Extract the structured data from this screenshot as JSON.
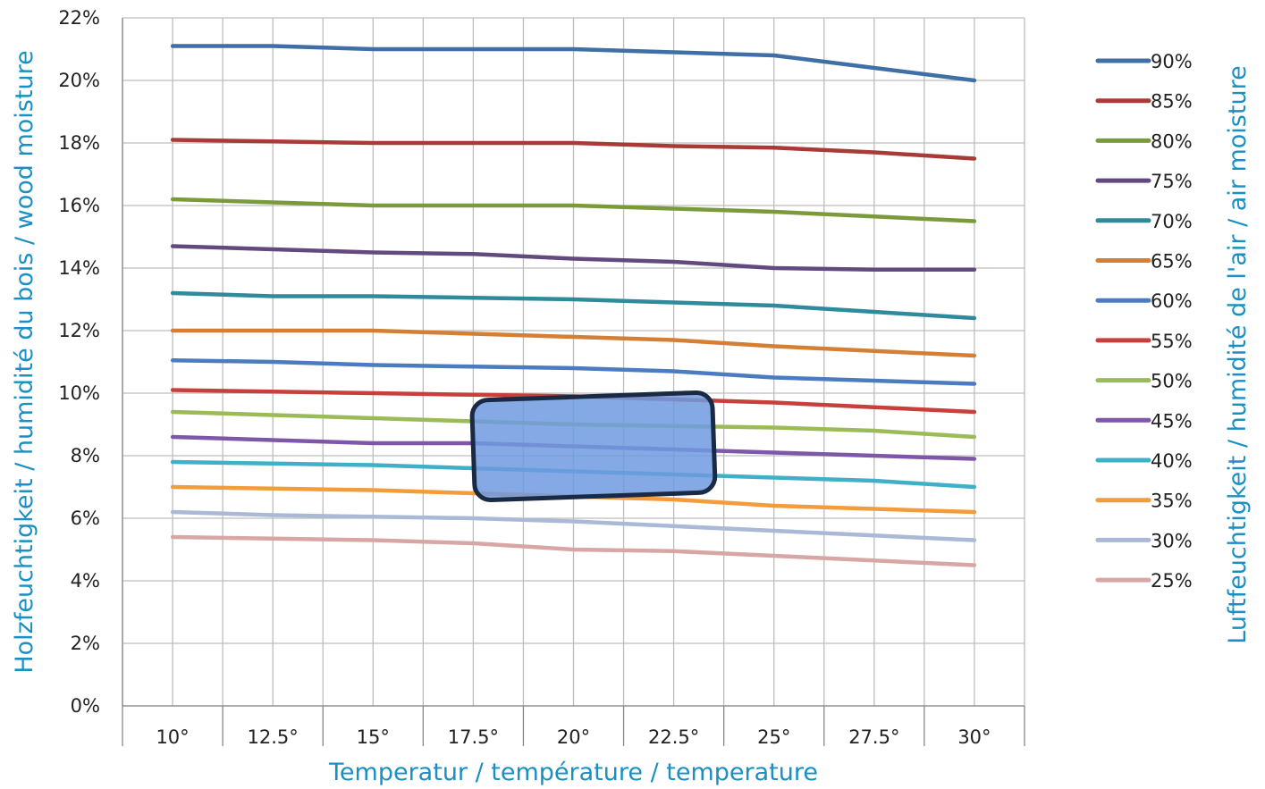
{
  "chart_data": {
    "type": "line",
    "xlabel": "Temperatur / température / temperature",
    "ylabel": "Holzfeuchtigkeit / humidité du bois / wood moisture",
    "legend_title": "Luftfeuchtigkeit / humidité de l'air / air moisture",
    "categories": [
      "10°",
      "12.5°",
      "15°",
      "17.5°",
      "20°",
      "22.5°",
      "25°",
      "27.5°",
      "30°"
    ],
    "x": [
      10,
      12.5,
      15,
      17.5,
      20,
      22.5,
      25,
      27.5,
      30
    ],
    "y_ticks": [
      "0%",
      "2%",
      "4%",
      "6%",
      "8%",
      "10%",
      "12%",
      "14%",
      "16%",
      "18%",
      "20%",
      "22%"
    ],
    "ylim": [
      0,
      22
    ],
    "grid": true,
    "legend_position": "right",
    "highlight": {
      "x_range": [
        17.5,
        23.5
      ],
      "y_range": [
        6.7,
        9.9
      ],
      "color": "#6f9ae0"
    },
    "series": [
      {
        "name": "90%",
        "color": "#3f6fa5",
        "values": [
          21.1,
          21.1,
          21.0,
          21.0,
          21.0,
          20.9,
          20.8,
          20.4,
          20.0
        ]
      },
      {
        "name": "85%",
        "color": "#a83a38",
        "values": [
          18.1,
          18.05,
          18.0,
          18.0,
          18.0,
          17.9,
          17.85,
          17.7,
          17.5
        ]
      },
      {
        "name": "80%",
        "color": "#7a9a3c",
        "values": [
          16.2,
          16.1,
          16.0,
          16.0,
          16.0,
          15.9,
          15.8,
          15.65,
          15.5
        ]
      },
      {
        "name": "75%",
        "color": "#634a7e",
        "values": [
          14.7,
          14.6,
          14.5,
          14.45,
          14.3,
          14.2,
          14.0,
          13.95,
          13.95
        ]
      },
      {
        "name": "70%",
        "color": "#2f8a9c",
        "values": [
          13.2,
          13.1,
          13.1,
          13.05,
          13.0,
          12.9,
          12.8,
          12.6,
          12.4
        ]
      },
      {
        "name": "65%",
        "color": "#d47f33",
        "values": [
          12.0,
          12.0,
          12.0,
          11.9,
          11.8,
          11.7,
          11.5,
          11.35,
          11.2
        ]
      },
      {
        "name": "60%",
        "color": "#4a7cbf",
        "values": [
          11.05,
          11.0,
          10.9,
          10.85,
          10.8,
          10.7,
          10.5,
          10.4,
          10.3
        ]
      },
      {
        "name": "55%",
        "color": "#c8403b",
        "values": [
          10.1,
          10.05,
          10.0,
          9.95,
          9.9,
          9.8,
          9.7,
          9.55,
          9.4
        ]
      },
      {
        "name": "50%",
        "color": "#9bbb59",
        "values": [
          9.4,
          9.3,
          9.2,
          9.1,
          9.0,
          8.95,
          8.9,
          8.8,
          8.6
        ]
      },
      {
        "name": "45%",
        "color": "#7e57a8",
        "values": [
          8.6,
          8.5,
          8.4,
          8.4,
          8.3,
          8.2,
          8.1,
          8.0,
          7.9
        ]
      },
      {
        "name": "40%",
        "color": "#3fb0c7",
        "values": [
          7.8,
          7.75,
          7.7,
          7.6,
          7.5,
          7.4,
          7.3,
          7.2,
          7.0
        ]
      },
      {
        "name": "35%",
        "color": "#f39c3c",
        "values": [
          7.0,
          6.95,
          6.9,
          6.8,
          6.7,
          6.6,
          6.4,
          6.3,
          6.2
        ]
      },
      {
        "name": "30%",
        "color": "#a9b9d6",
        "values": [
          6.2,
          6.1,
          6.05,
          6.0,
          5.9,
          5.75,
          5.6,
          5.45,
          5.3
        ]
      },
      {
        "name": "25%",
        "color": "#d8a6a5",
        "values": [
          5.4,
          5.35,
          5.3,
          5.2,
          5.0,
          4.95,
          4.8,
          4.65,
          4.5
        ]
      }
    ]
  }
}
